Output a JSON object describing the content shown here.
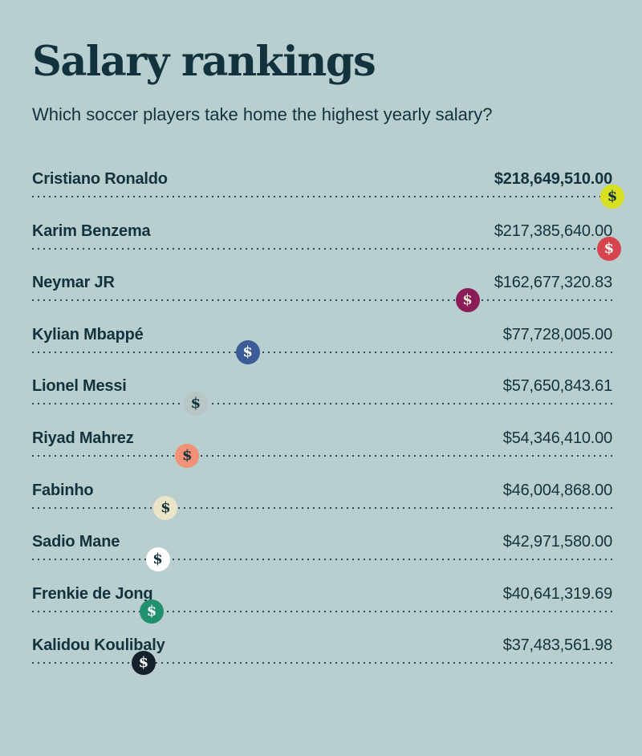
{
  "page": {
    "background_color": "#b8cecf",
    "text_color": "#12333e",
    "dotted_line_color": "#12333e"
  },
  "header": {
    "title": "Salary rankings",
    "subtitle": "Which soccer players take home the highest yearly salary?"
  },
  "chart_data": {
    "type": "scatter",
    "variant": "ranked-dot-plot",
    "title": "Salary rankings",
    "subtitle": "Which soccer players take home the highest yearly salary?",
    "value_axis": "yearly salary (USD)",
    "xlim": [
      0,
      218649510
    ],
    "badge_glyph": "$",
    "players": [
      {
        "rank": 1,
        "name": "Cristiano Ronaldo",
        "salary": 218649510.0,
        "label": "$218,649,510.00",
        "value_bold": true,
        "badge_bg": "#d8e01f",
        "badge_fg": "#12333e"
      },
      {
        "rank": 2,
        "name": "Karim Benzema",
        "salary": 217385640.0,
        "label": "$217,385,640.00",
        "value_bold": false,
        "badge_bg": "#d8444e",
        "badge_fg": "#ffffff"
      },
      {
        "rank": 3,
        "name": "Neymar JR",
        "salary": 162677320.83,
        "label": "$162,677,320.83",
        "value_bold": false,
        "badge_bg": "#8c1c58",
        "badge_fg": "#f2e9d9"
      },
      {
        "rank": 4,
        "name": "Kylian Mbappé",
        "salary": 77728005.0,
        "label": "$77,728,005.00",
        "value_bold": false,
        "badge_bg": "#3c5b99",
        "badge_fg": "#ffffff"
      },
      {
        "rank": 5,
        "name": "Lionel Messi",
        "salary": 57650843.61,
        "label": "$57,650,843.61",
        "value_bold": false,
        "badge_bg": "#b7c5c6",
        "badge_fg": "#12333e"
      },
      {
        "rank": 6,
        "name": "Riyad Mahrez",
        "salary": 54346410.0,
        "label": "$54,346,410.00",
        "value_bold": false,
        "badge_bg": "#f19175",
        "badge_fg": "#12333e"
      },
      {
        "rank": 7,
        "name": "Fabinho",
        "salary": 46004868.0,
        "label": "$46,004,868.00",
        "value_bold": false,
        "badge_bg": "#ece4c6",
        "badge_fg": "#12333e"
      },
      {
        "rank": 8,
        "name": "Sadio Mane",
        "salary": 42971580.0,
        "label": "$42,971,580.00",
        "value_bold": false,
        "badge_bg": "#ffffff",
        "badge_fg": "#12333e"
      },
      {
        "rank": 9,
        "name": "Frenkie de Jong",
        "salary": 40641319.69,
        "label": "$40,641,319.69",
        "value_bold": false,
        "badge_bg": "#20906f",
        "badge_fg": "#ffffff"
      },
      {
        "rank": 10,
        "name": "Kalidou Koulibaly",
        "salary": 37483561.98,
        "label": "$37,483,561.98",
        "value_bold": false,
        "badge_bg": "#15222e",
        "badge_fg": "#ffffff"
      }
    ]
  }
}
